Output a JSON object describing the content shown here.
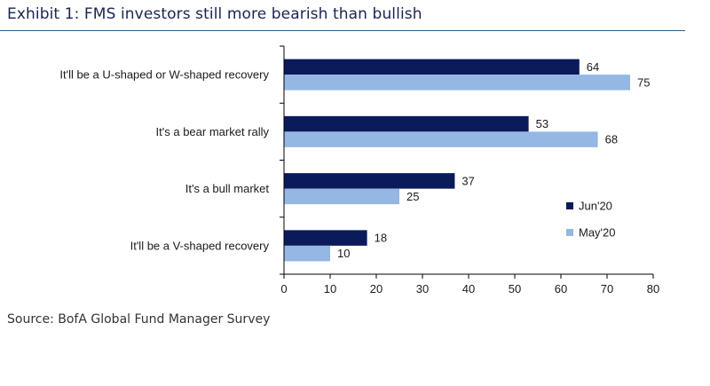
{
  "page": {
    "title": "Exhibit 1: FMS investors still more bearish than bullish",
    "source": "Source: BofA Global Fund Manager Survey"
  },
  "colors": {
    "series1": "#0b1a5a",
    "series2": "#94b7e3",
    "axis": "#000000",
    "text": "#1a1a1a"
  },
  "chart_data": {
    "type": "bar",
    "orientation": "horizontal",
    "title": "Exhibit 1: FMS investors still more bearish than bullish",
    "categories": [
      "It'll be a U-shaped or W-shaped recovery",
      "It's a bear market rally",
      "It's a bull market",
      "It'll be a V-shaped recovery"
    ],
    "series": [
      {
        "name": "Jun'20",
        "values": [
          64,
          53,
          37,
          18
        ]
      },
      {
        "name": "May'20",
        "values": [
          75,
          68,
          25,
          10
        ]
      }
    ],
    "xlim": [
      0,
      80
    ],
    "xticks": [
      "0",
      "10",
      "20",
      "30",
      "40",
      "50",
      "60",
      "70",
      "80"
    ],
    "xlabel": "",
    "ylabel": "",
    "legend_position": "right",
    "grid": false
  }
}
